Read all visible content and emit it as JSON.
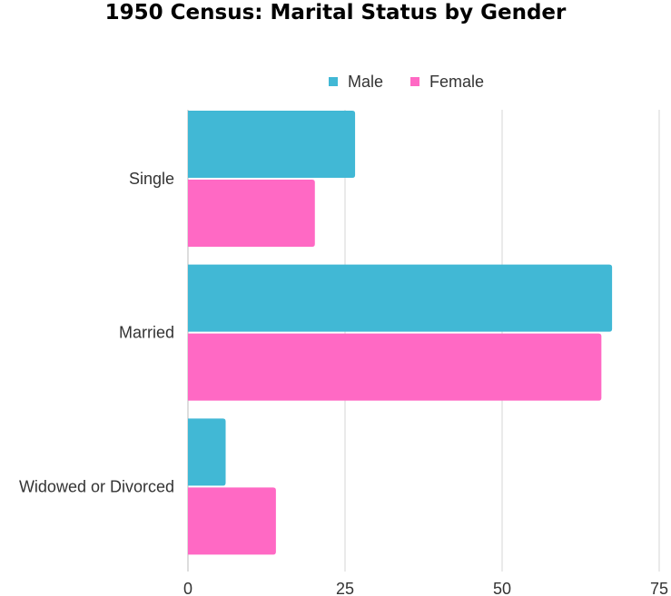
{
  "chart_data": {
    "type": "bar",
    "orientation": "horizontal",
    "title": "1950 Census: Marital Status by Gender",
    "categories": [
      "Single",
      "Married",
      "Widowed or Divorced"
    ],
    "series": [
      {
        "name": "Male",
        "color": "#41B8D5",
        "values": [
          26.6,
          67.5,
          6.0
        ]
      },
      {
        "name": "Female",
        "color": "#FF69C4",
        "values": [
          20.2,
          65.8,
          14.0
        ]
      }
    ],
    "xlim": [
      0,
      75
    ],
    "xticks": [
      0,
      25,
      50,
      75
    ],
    "grid": true,
    "legend_position": "top"
  }
}
